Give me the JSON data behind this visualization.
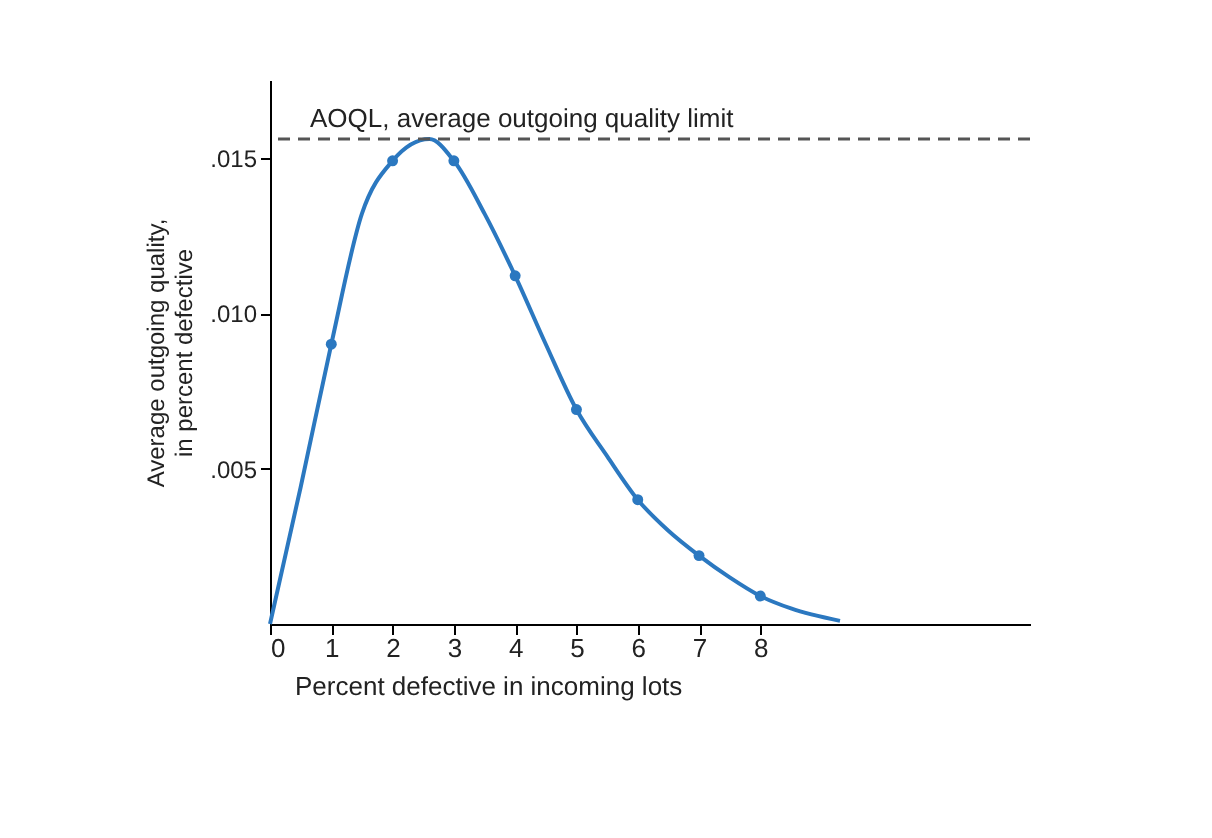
{
  "chart_data": {
    "type": "line",
    "xlabel": "Percent defective in incoming lots",
    "ylabel": "Average outgoing quality,\nin percent defective",
    "xlim": [
      0,
      12.4
    ],
    "xticks": [
      0,
      1,
      2,
      3,
      4,
      5,
      6,
      7,
      8
    ],
    "ylim": [
      0,
      0.0175
    ],
    "yticks": [
      {
        "value": 0.005,
        "label": ".005"
      },
      {
        "value": 0.01,
        "label": ".010"
      },
      {
        "value": 0.015,
        "label": ".015"
      }
    ],
    "grid": false,
    "series": [
      {
        "color": "#2b78c0",
        "marker": "none",
        "line_style": "solid",
        "x": [
          0,
          0.5,
          1,
          1.5,
          2,
          2.6,
          3,
          3.5,
          4,
          4.5,
          5,
          5.5,
          6,
          6.5,
          7,
          7.5,
          8,
          8.5,
          9.3
        ],
        "values": [
          0,
          0.0044,
          0.009,
          0.0132,
          0.0149,
          0.0156,
          0.0149,
          0.0132,
          0.0112,
          0.009,
          0.0069,
          0.0054,
          0.004,
          0.003,
          0.0022,
          0.0015,
          0.0009,
          0.0005,
          0.0001
        ]
      },
      {
        "type": "scatter",
        "color": "#2b78c0",
        "marker": "circle",
        "x": [
          1,
          2,
          3,
          4,
          5,
          6,
          7,
          8
        ],
        "values": [
          0.009,
          0.0149,
          0.0149,
          0.0112,
          0.0069,
          0.004,
          0.0022,
          0.0009
        ]
      }
    ],
    "ref_lines": [
      {
        "axis": "y",
        "value": 0.0156,
        "label": "AOQL, average outgoing quality limit",
        "color": "#555555",
        "line_style": "dashed"
      }
    ]
  }
}
